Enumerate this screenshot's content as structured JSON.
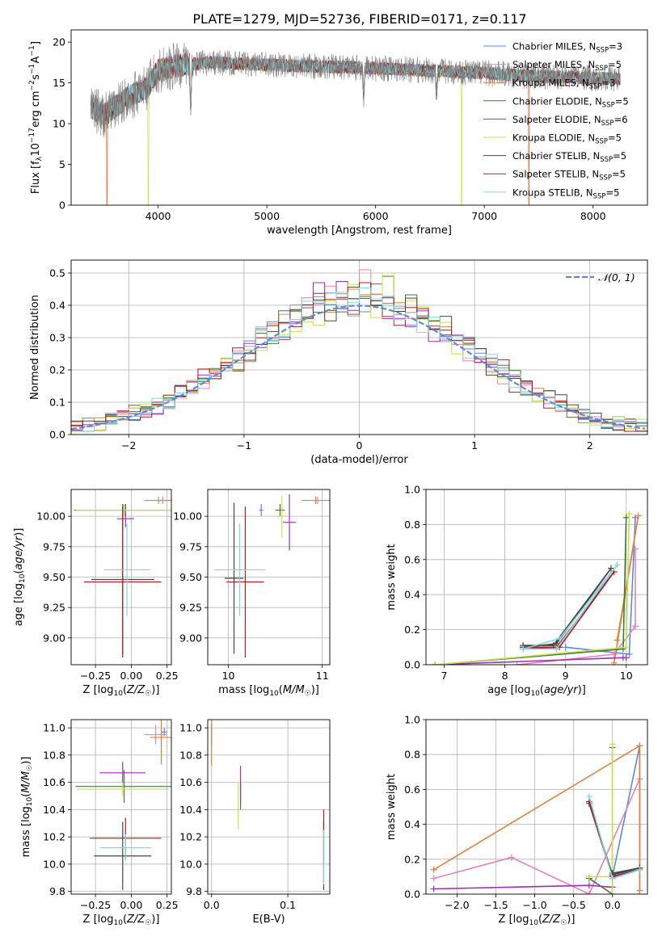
{
  "figure_title": "PLATE=1279, MJD=52736, FIBERID=0171, z=0.117",
  "colors": {
    "chabrier_miles": "#5b8bd6",
    "salpeter_miles": "#e680b8",
    "kroupa_miles": "#e0823a",
    "chabrier_elodie": "#3c7a3c",
    "salpeter_elodie": "#9b30b0",
    "kroupa_elodie": "#c8e04a",
    "chabrier_stelib": "#444444",
    "salpeter_stelib": "#b01e1e",
    "kroupa_stelib": "#7fd8e0",
    "spectrum": "#808080",
    "gaussian": "#5b8bd6",
    "grid": "#b0b0b0"
  },
  "legend_spectrum": [
    {
      "base": "Chabrier MILES, N",
      "sub": "SSP",
      "tail": "=3",
      "color_key": "chabrier_miles"
    },
    {
      "base": "Salpeter MILES, N",
      "sub": "SSP",
      "tail": "=5",
      "color_key": "salpeter_miles"
    },
    {
      "base": "Kroupa MILES, N",
      "sub": "SSP",
      "tail": "=3",
      "color_key": "kroupa_miles"
    },
    {
      "base": "Chabrier ELODIE, N",
      "sub": "SSP",
      "tail": "=5",
      "color_key": "chabrier_elodie"
    },
    {
      "base": "Salpeter ELODIE, N",
      "sub": "SSP",
      "tail": "=6",
      "color_key": "salpeter_elodie"
    },
    {
      "base": "Kroupa ELODIE, N",
      "sub": "SSP",
      "tail": "=5",
      "color_key": "kroupa_elodie"
    },
    {
      "base": "Chabrier STELIB, N",
      "sub": "SSP",
      "tail": "=5",
      "color_key": "chabrier_stelib"
    },
    {
      "base": "Salpeter STELIB, N",
      "sub": "SSP",
      "tail": "=5",
      "color_key": "salpeter_stelib"
    },
    {
      "base": "Kroupa STELIB, N",
      "sub": "SSP",
      "tail": "=5",
      "color_key": "kroupa_stelib"
    }
  ],
  "legend_hist": "𝒩(0, 1)",
  "chart_data": [
    {
      "id": "spectrum",
      "type": "line",
      "title": "PLATE=1279, MJD=52736, FIBERID=0171, z=0.117",
      "xlabel": "wavelength [Angstrom, rest frame]",
      "ylabel": "Flux [f_λ 10^-17 erg cm^-2 s^-1 A^-1]",
      "xlim": [
        3200,
        8500
      ],
      "ylim": [
        0,
        21.5
      ],
      "xticks": [
        "4000",
        "5000",
        "6000",
        "7000",
        "8000"
      ],
      "yticks": [
        "0",
        "5",
        "10",
        "15",
        "20"
      ],
      "data_range": [
        3380,
        8250
      ],
      "anchors": {
        "x": [
          3380,
          3500,
          3700,
          3900,
          4000,
          4200,
          4500,
          5000,
          5500,
          6000,
          6500,
          7000,
          7500,
          8000,
          8250
        ],
        "y": [
          12,
          11,
          13,
          14.5,
          16.5,
          17.2,
          17.5,
          17.2,
          17,
          16.8,
          16.5,
          16.2,
          15.8,
          15.6,
          15.5
        ]
      },
      "spikes_to_zero": [
        3530,
        3910,
        6790,
        7410
      ],
      "dips": [
        [
          4300,
          11.5
        ],
        [
          5890,
          13
        ],
        [
          6560,
          13.5
        ]
      ]
    },
    {
      "id": "residual_hist",
      "type": "line",
      "xlabel": "(data-model)/error",
      "ylabel": "Normed distribution",
      "xlim": [
        -2.5,
        2.5
      ],
      "ylim": [
        0,
        0.54
      ],
      "xticks": [
        "−2",
        "−1",
        "0",
        "1",
        "2"
      ],
      "yticks": [
        "0.0",
        "0.1",
        "0.2",
        "0.3",
        "0.4",
        "0.5"
      ],
      "bin_width": 0.1,
      "grid": true,
      "legend": "top-right",
      "series": [
        {
          "color_key": "chabrier_miles",
          "peaks": [
            0.04,
            0.38
          ]
        },
        {
          "color_key": "salpeter_miles",
          "peaks": [
            0.05,
            0.51
          ]
        },
        {
          "color_key": "kroupa_miles",
          "peaks": [
            0.0,
            0.45
          ]
        },
        {
          "color_key": "chabrier_elodie",
          "peaks": [
            0.3,
            0.49
          ]
        },
        {
          "color_key": "salpeter_elodie",
          "peaks": [
            -0.3,
            0.47
          ]
        },
        {
          "color_key": "kroupa_elodie",
          "peaks": [
            0.3,
            0.5
          ]
        },
        {
          "color_key": "chabrier_stelib",
          "peaks": [
            0.05,
            0.47
          ]
        },
        {
          "color_key": "salpeter_stelib",
          "peaks": [
            0.05,
            0.47
          ]
        },
        {
          "color_key": "kroupa_stelib",
          "peaks": [
            0.2,
            0.42
          ]
        }
      ]
    },
    {
      "id": "age_vs_Z",
      "type": "scatter",
      "xlabel": "Z [log10(Z/Z☉)]",
      "ylabel": "age  [log10(age/yr)]",
      "xlim": [
        -0.42,
        0.28
      ],
      "ylim": [
        8.78,
        10.22
      ],
      "xticks": [
        "−0.25",
        "0.00",
        "0.25"
      ],
      "yticks": [
        "9.00",
        "9.25",
        "9.50",
        "9.75",
        "10.00"
      ],
      "points": [
        {
          "color_key": "chabrier_miles",
          "x": -0.04,
          "xerr": 0.02,
          "y": 10.05,
          "yerr": 0.05
        },
        {
          "color_key": "salpeter_miles",
          "x": 0.22,
          "xerr": 0.05,
          "y": 10.13,
          "yerr": 0.03
        },
        {
          "color_key": "kroupa_miles",
          "x": 0.19,
          "xerr": 0.1,
          "y": 10.13,
          "yerr": 0.03
        },
        {
          "color_key": "chabrier_elodie",
          "x": -0.04,
          "xerr": 0.36,
          "y": 10.05,
          "yerr": 0.05
        },
        {
          "color_key": "salpeter_elodie",
          "x": -0.04,
          "xerr": 0.06,
          "y": 9.98,
          "yerr": 0.07
        },
        {
          "color_key": "kroupa_elodie",
          "x": -0.05,
          "xerr": 0.34,
          "y": 10.05,
          "yerr": 0.05
        },
        {
          "color_key": "chabrier_stelib",
          "x": -0.06,
          "xerr": 0.22,
          "y": 9.48,
          "yerr": 0.62
        },
        {
          "color_key": "salpeter_stelib",
          "x": -0.06,
          "xerr": 0.27,
          "y": 9.46,
          "yerr": 0.62
        },
        {
          "color_key": "kroupa_stelib",
          "x": -0.03,
          "xerr": 0.16,
          "y": 9.56,
          "yerr": 0.38
        }
      ]
    },
    {
      "id": "age_vs_mass",
      "type": "scatter",
      "xlabel": "mass [log10(M/M☉)]",
      "ylabel": "",
      "xlim": [
        9.78,
        11.08
      ],
      "ylim": [
        8.78,
        10.22
      ],
      "xticks": [
        "10",
        "11"
      ],
      "yticks": [
        "9.00",
        "9.25",
        "9.50",
        "9.75",
        "10.00"
      ],
      "points": [
        {
          "color_key": "chabrier_miles",
          "x": 10.35,
          "xerr": 0.02,
          "y": 10.05,
          "yerr": 0.05
        },
        {
          "color_key": "salpeter_miles",
          "x": 10.95,
          "xerr": 0.03,
          "y": 10.13,
          "yerr": 0.03
        },
        {
          "color_key": "kroupa_miles",
          "x": 10.93,
          "xerr": 0.15,
          "y": 10.13,
          "yerr": 0.03
        },
        {
          "color_key": "chabrier_elodie",
          "x": 10.55,
          "xerr": 0.05,
          "y": 10.05,
          "yerr": 0.05
        },
        {
          "color_key": "salpeter_elodie",
          "x": 10.65,
          "xerr": 0.07,
          "y": 9.95,
          "yerr": 0.23
        },
        {
          "color_key": "kroupa_elodie",
          "x": 10.57,
          "xerr": 0.05,
          "y": 10.0,
          "yerr": 0.17
        },
        {
          "color_key": "chabrier_stelib",
          "x": 10.06,
          "xerr": 0.1,
          "y": 9.49,
          "yerr": 0.62
        },
        {
          "color_key": "salpeter_stelib",
          "x": 10.18,
          "xerr": 0.2,
          "y": 9.46,
          "yerr": 0.62
        },
        {
          "color_key": "kroupa_stelib",
          "x": 10.12,
          "xerr": 0.27,
          "y": 9.56,
          "yerr": 0.38
        }
      ]
    },
    {
      "id": "weight_vs_age",
      "type": "line",
      "xlabel": "age  [log10(age/yr)]",
      "ylabel": "mass weight",
      "xlim": [
        6.7,
        10.35
      ],
      "ylim": [
        0,
        1.0
      ],
      "xticks": [
        "7",
        "8",
        "9",
        "10"
      ],
      "yticks": [
        "0.0",
        "0.2",
        "0.4",
        "0.6",
        "0.8",
        "1.0"
      ],
      "series": [
        {
          "color_key": "chabrier_miles",
          "x": [
            9.0,
            10.05,
            10.15
          ],
          "y": [
            0.1,
            0.06,
            0.84
          ]
        },
        {
          "color_key": "salpeter_miles",
          "x": [
            8.2,
            9.8,
            10.15,
            10.15
          ],
          "y": [
            0.0,
            0.06,
            0.22,
            0.66
          ]
        },
        {
          "color_key": "kroupa_miles",
          "x": [
            9.8,
            10.2,
            9.85
          ],
          "y": [
            0.01,
            0.85,
            0.14
          ]
        },
        {
          "color_key": "chabrier_elodie",
          "x": [
            6.85,
            9.95,
            10.0
          ],
          "y": [
            0.0,
            0.09,
            0.84
          ]
        },
        {
          "color_key": "salpeter_elodie",
          "x": [
            6.85,
            9.95,
            10.0
          ],
          "y": [
            0.0,
            0.04,
            0.04
          ]
        },
        {
          "color_key": "kroupa_elodie",
          "x": [
            6.85,
            10.0,
            10.05
          ],
          "y": [
            0.0,
            0.1,
            0.86
          ]
        },
        {
          "color_key": "chabrier_stelib",
          "x": [
            8.3,
            8.8,
            9.75,
            8.85,
            8.3
          ],
          "y": [
            0.11,
            0.11,
            0.55,
            0.12,
            0.1
          ]
        },
        {
          "color_key": "salpeter_stelib",
          "x": [
            8.3,
            8.85,
            9.8,
            8.9,
            8.3
          ],
          "y": [
            0.1,
            0.1,
            0.53,
            0.1,
            0.09
          ]
        },
        {
          "color_key": "kroupa_stelib",
          "x": [
            8.3,
            8.85,
            9.85,
            8.9,
            8.3
          ],
          "y": [
            0.09,
            0.09,
            0.57,
            0.15,
            0.09
          ]
        }
      ]
    },
    {
      "id": "mass_vs_Z",
      "type": "scatter",
      "xlabel": "Z [log10(Z/Z☉)]",
      "ylabel": "mass [log10(M/M☉)]",
      "xlim": [
        -0.42,
        0.28
      ],
      "ylim": [
        9.78,
        11.06
      ],
      "xticks": [
        "−0.25",
        "0.00",
        "0.25"
      ],
      "yticks": [
        "9.8",
        "10.0",
        "10.2",
        "10.4",
        "10.6",
        "10.8",
        "11.0"
      ],
      "points": [
        {
          "color_key": "chabrier_miles",
          "x": 0.23,
          "xerr": 0.02,
          "y": 10.97,
          "yerr": 0.03
        },
        {
          "color_key": "salpeter_miles",
          "x": 0.17,
          "xerr": 0.08,
          "y": 10.95,
          "yerr": 0.07
        },
        {
          "color_key": "kroupa_miles",
          "x": 0.21,
          "xerr": 0.08,
          "y": 10.93,
          "yerr": 0.2
        },
        {
          "color_key": "chabrier_elodie",
          "x": -0.05,
          "xerr": 0.34,
          "y": 10.57,
          "yerr": 0.12
        },
        {
          "color_key": "salpeter_elodie",
          "x": -0.06,
          "xerr": 0.16,
          "y": 10.67,
          "yerr": 0.08
        },
        {
          "color_key": "kroupa_elodie",
          "x": -0.06,
          "xerr": 0.32,
          "y": 10.55,
          "yerr": 0.05
        },
        {
          "color_key": "chabrier_stelib",
          "x": -0.06,
          "xerr": 0.2,
          "y": 10.06,
          "yerr": 0.25
        },
        {
          "color_key": "salpeter_stelib",
          "x": -0.04,
          "xerr": 0.25,
          "y": 10.19,
          "yerr": 0.15
        },
        {
          "color_key": "kroupa_stelib",
          "x": -0.04,
          "xerr": 0.18,
          "y": 10.12,
          "yerr": 0.1
        }
      ]
    },
    {
      "id": "mass_vs_ebv",
      "type": "scatter",
      "xlabel": "E(B-V)",
      "ylabel": "",
      "xlim": [
        -0.005,
        0.155
      ],
      "ylim": [
        9.78,
        11.06
      ],
      "xticks": [
        "0.0",
        "0.1"
      ],
      "yticks": [
        "9.8",
        "10.0",
        "10.2",
        "10.4",
        "10.6",
        "10.8",
        "11.0"
      ],
      "points": [
        {
          "color_key": "chabrier_miles",
          "x": 0.0,
          "xerr": 0,
          "y": 10.97,
          "yerr": 0.03
        },
        {
          "color_key": "salpeter_miles",
          "x": 0.0,
          "xerr": 0,
          "y": 10.95,
          "yerr": 0.07
        },
        {
          "color_key": "kroupa_miles",
          "x": 0.0,
          "xerr": 0,
          "y": 10.9,
          "yerr": 0.18
        },
        {
          "color_key": "chabrier_elodie",
          "x": 0.038,
          "xerr": 0,
          "y": 10.5,
          "yerr": 0.1
        },
        {
          "color_key": "salpeter_elodie",
          "x": 0.038,
          "xerr": 0,
          "y": 10.58,
          "yerr": 0.14
        },
        {
          "color_key": "kroupa_elodie",
          "x": 0.035,
          "xerr": 0,
          "y": 10.43,
          "yerr": 0.17
        },
        {
          "color_key": "chabrier_stelib",
          "x": 0.147,
          "xerr": 0,
          "y": 10.06,
          "yerr": 0.25
        },
        {
          "color_key": "salpeter_stelib",
          "x": 0.147,
          "xerr": 0,
          "y": 10.2,
          "yerr": 0.2
        },
        {
          "color_key": "kroupa_stelib",
          "x": 0.147,
          "xerr": 0,
          "y": 10.05,
          "yerr": 0.2
        }
      ]
    },
    {
      "id": "weight_vs_Z",
      "type": "line",
      "xlabel": "Z [log10(Z/Z☉)]",
      "ylabel": "mass weight",
      "xlim": [
        -2.4,
        0.45
      ],
      "ylim": [
        0,
        1.0
      ],
      "xticks": [
        "−2.0",
        "−1.5",
        "−1.0",
        "−0.5",
        "0.0"
      ],
      "yticks": [
        "0.0",
        "0.2",
        "0.4",
        "0.6",
        "0.8",
        "1.0"
      ],
      "series": [
        {
          "color_key": "chabrier_miles",
          "x": [
            0.0,
            0.35,
            0.35,
            0.0,
            0.0
          ],
          "y": [
            0.1,
            0.15,
            0.85,
            0.1,
            0.1
          ]
        },
        {
          "color_key": "salpeter_miles",
          "x": [
            -2.3,
            -1.3,
            -0.3,
            0.35,
            0.35
          ],
          "y": [
            0.09,
            0.21,
            0.0,
            0.66,
            0.02
          ]
        },
        {
          "color_key": "kroupa_miles",
          "x": [
            -2.3,
            0.35,
            0.35,
            0.35
          ],
          "y": [
            0.14,
            0.85,
            0.14,
            0.02
          ]
        },
        {
          "color_key": "chabrier_elodie",
          "x": [
            -0.3,
            0.0,
            0.0,
            0.0
          ],
          "y": [
            0.09,
            0.0,
            0.84,
            0.09
          ]
        },
        {
          "color_key": "salpeter_elodie",
          "x": [
            -2.3,
            -0.3,
            0.0
          ],
          "y": [
            0.03,
            0.05,
            0.04
          ]
        },
        {
          "color_key": "kroupa_elodie",
          "x": [
            -0.3,
            0.0,
            0.0,
            0.0
          ],
          "y": [
            0.1,
            0.1,
            0.86,
            0.0
          ]
        },
        {
          "color_key": "chabrier_stelib",
          "x": [
            -0.3,
            0.0,
            0.35,
            0.0
          ],
          "y": [
            0.53,
            0.11,
            0.15,
            0.12
          ]
        },
        {
          "color_key": "salpeter_stelib",
          "x": [
            -0.3,
            0.0,
            0.35,
            0.0
          ],
          "y": [
            0.52,
            0.1,
            0.14,
            0.09
          ]
        },
        {
          "color_key": "kroupa_stelib",
          "x": [
            -0.3,
            0.0,
            0.35,
            0.0
          ],
          "y": [
            0.56,
            0.09,
            0.14,
            0.09
          ]
        }
      ]
    }
  ]
}
